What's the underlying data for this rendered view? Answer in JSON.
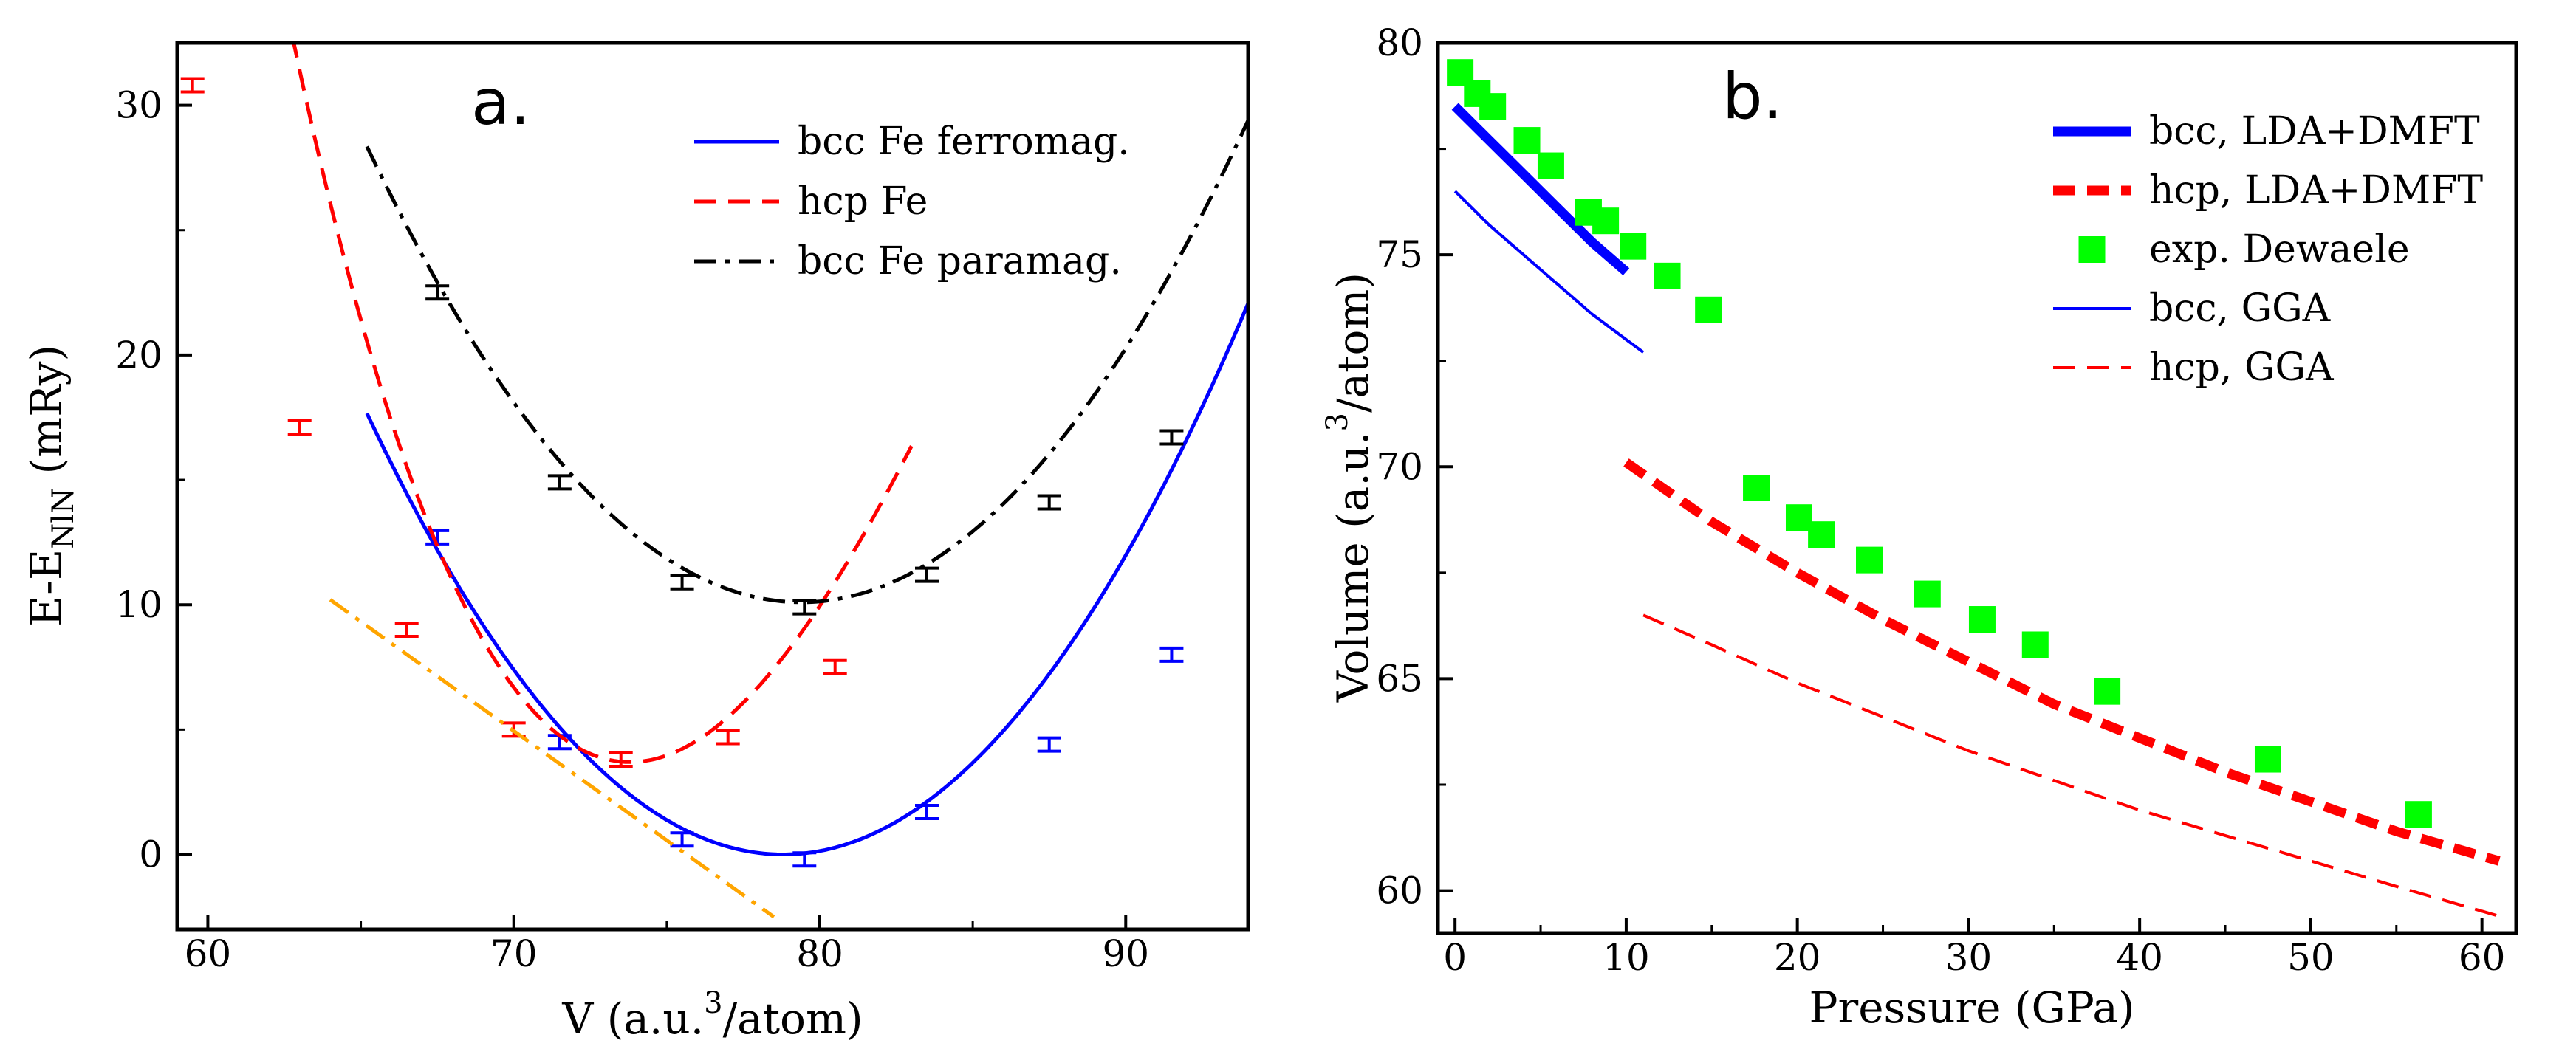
{
  "chart_data": [
    {
      "type": "line",
      "panel_label": "a.",
      "xlabel": "V (a.u.³/atom)",
      "xlabel_parts": {
        "main": "V (a.u.",
        "sup": "3",
        "tail": "/atom)"
      },
      "ylabel": "E-E_NlN (mRy)",
      "ylabel_parts": {
        "main": "E-E",
        "sub": "NlN",
        "tail": " (mRy)"
      },
      "xlim": [
        59,
        94
      ],
      "ylim": [
        -3,
        32.5
      ],
      "xticks": [
        60,
        70,
        80,
        90
      ],
      "yticks": [
        0,
        10,
        20,
        30
      ],
      "legend_position": "top-right",
      "series": [
        {
          "name": "bcc Fe ferromag.",
          "color": "#0000ff",
          "dash": "solid",
          "curve": {
            "form": "quadratic",
            "x0": 78.8,
            "y0": 0.0,
            "a": 0.0955,
            "x_range": [
              65.2,
              94
            ]
          },
          "points": [
            [
              67.5,
              12.7
            ],
            [
              71.5,
              4.5
            ],
            [
              75.5,
              0.6
            ],
            [
              79.5,
              -0.2
            ],
            [
              83.5,
              1.7
            ],
            [
              87.5,
              4.4
            ],
            [
              91.5,
              8.0
            ]
          ]
        },
        {
          "name": "hcp Fe",
          "color": "#ff0000",
          "dash": "dashed",
          "curve": {
            "form": "cubic",
            "x0": 73.8,
            "y0": 3.7,
            "a": 0.19,
            "b": -0.0044,
            "x_range": [
              59,
              83
            ]
          },
          "points": [
            [
              59.5,
              30.8
            ],
            [
              63.0,
              17.1
            ],
            [
              66.5,
              9.0
            ],
            [
              70.0,
              5.0
            ],
            [
              73.5,
              3.8
            ],
            [
              77.0,
              4.7
            ],
            [
              80.5,
              7.5
            ]
          ]
        },
        {
          "name": "bcc Fe paramag.",
          "color": "#000000",
          "dash": "dash-dot",
          "curve": {
            "form": "quadratic",
            "x0": 79.4,
            "y0": 10.1,
            "a": 0.0905,
            "x_range": [
              65.2,
              94
            ]
          },
          "points": [
            [
              67.5,
              22.5
            ],
            [
              71.5,
              14.9
            ],
            [
              75.5,
              10.9
            ],
            [
              79.5,
              9.9
            ],
            [
              83.5,
              11.2
            ],
            [
              87.5,
              14.1
            ],
            [
              91.5,
              16.7
            ]
          ]
        },
        {
          "color": "#ffa500",
          "dash": "dash-dot",
          "curve": {
            "form": "linear",
            "points": [
              [
                64.0,
                10.2
              ],
              [
                78.5,
                -2.5
              ]
            ]
          },
          "points": []
        }
      ]
    },
    {
      "type": "line",
      "panel_label": "b.",
      "xlabel": "Pressure (GPa)",
      "ylabel": "Volume (a.u.³/atom)",
      "ylabel_parts": {
        "main": "Volume (a.u.",
        "sup": "3",
        "tail": "/atom)"
      },
      "xlim": [
        -1,
        62
      ],
      "ylim": [
        59,
        80
      ],
      "xticks": [
        0,
        10,
        20,
        30,
        40,
        50,
        60
      ],
      "yticks": [
        60,
        65,
        70,
        75,
        80
      ],
      "legend_position": "top-right",
      "series": [
        {
          "name": "bcc, LDA+DMFT",
          "color": "#0000ff",
          "dash": "solid",
          "width": "thick",
          "x": [
            0,
            2,
            4,
            6,
            8,
            10
          ],
          "y": [
            78.5,
            77.7,
            76.9,
            76.1,
            75.3,
            74.6
          ]
        },
        {
          "name": "hcp, LDA+DMFT",
          "color": "#ff0000",
          "dash": "dashed",
          "width": "thick",
          "x": [
            10,
            15,
            20,
            25,
            30,
            35,
            40,
            45,
            50,
            55,
            61
          ],
          "y": [
            70.1,
            68.7,
            67.5,
            66.4,
            65.4,
            64.4,
            63.6,
            62.8,
            62.1,
            61.4,
            60.7
          ]
        },
        {
          "name": "exp. Dewaele",
          "color": "#00ff00",
          "marker": "square",
          "x": [
            0.3,
            1.3,
            2.2,
            4.2,
            5.6,
            7.8,
            8.8,
            10.4,
            12.4,
            14.8,
            17.6,
            20.1,
            21.4,
            24.2,
            27.6,
            30.8,
            33.9,
            38.1,
            47.5,
            56.3
          ],
          "y": [
            79.3,
            78.8,
            78.5,
            77.7,
            77.1,
            76.0,
            75.8,
            75.2,
            74.5,
            73.7,
            69.5,
            68.8,
            68.4,
            67.8,
            67.0,
            66.4,
            65.8,
            64.7,
            63.1,
            61.8
          ]
        },
        {
          "name": "bcc, GGA",
          "color": "#0000ff",
          "dash": "solid",
          "width": "thin",
          "x": [
            0,
            2,
            4,
            6,
            8,
            10,
            11
          ],
          "y": [
            76.5,
            75.7,
            75.0,
            74.3,
            73.6,
            73.0,
            72.7
          ]
        },
        {
          "name": "hcp, GGA",
          "color": "#ff0000",
          "dash": "dashed",
          "width": "thin",
          "x": [
            11,
            15,
            20,
            25,
            30,
            35,
            40,
            45,
            50,
            55,
            61
          ],
          "y": [
            66.5,
            65.8,
            64.9,
            64.1,
            63.3,
            62.6,
            61.9,
            61.3,
            60.7,
            60.1,
            59.4
          ]
        }
      ]
    }
  ]
}
